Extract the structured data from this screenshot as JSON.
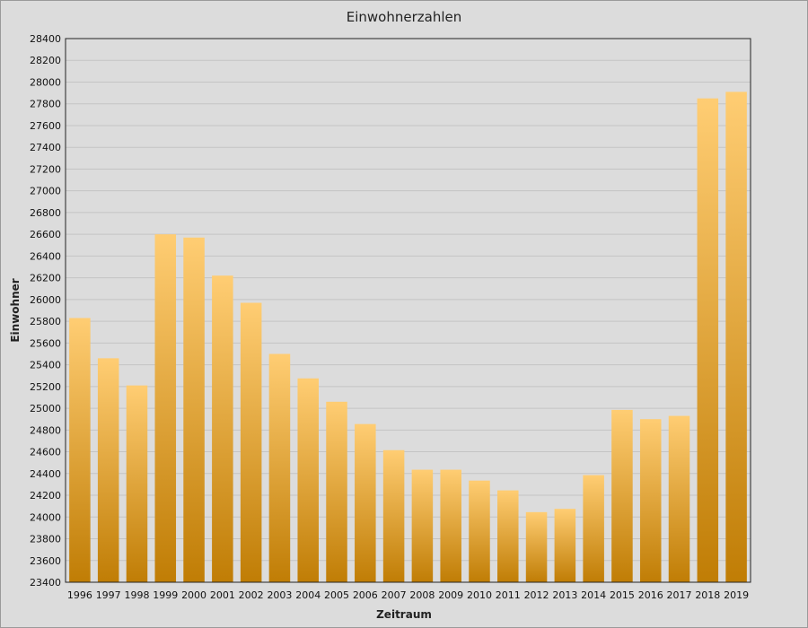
{
  "chart_data": {
    "type": "bar",
    "title": "Einwohnerzahlen",
    "xlabel": "Zeitraum",
    "ylabel": "Einwohner",
    "categories": [
      "1996",
      "1997",
      "1998",
      "1999",
      "2000",
      "2001",
      "2002",
      "2003",
      "2004",
      "2005",
      "2006",
      "2007",
      "2008",
      "2009",
      "2010",
      "2011",
      "2012",
      "2013",
      "2014",
      "2015",
      "2016",
      "2017",
      "2018",
      "2019"
    ],
    "values": [
      25830,
      25460,
      25210,
      26600,
      26570,
      26220,
      25970,
      25500,
      25275,
      25060,
      24855,
      24615,
      24435,
      24435,
      24335,
      24245,
      24045,
      24075,
      24385,
      24985,
      24900,
      24930,
      27850,
      27910
    ],
    "ylim": [
      23400,
      28400
    ],
    "ytick_step": 200,
    "grid": true,
    "colors": {
      "bar_top": "#ffcd73",
      "bar_bottom": "#c07d05",
      "grid": "#c4c4c4",
      "background": "#dcdcdc"
    }
  }
}
